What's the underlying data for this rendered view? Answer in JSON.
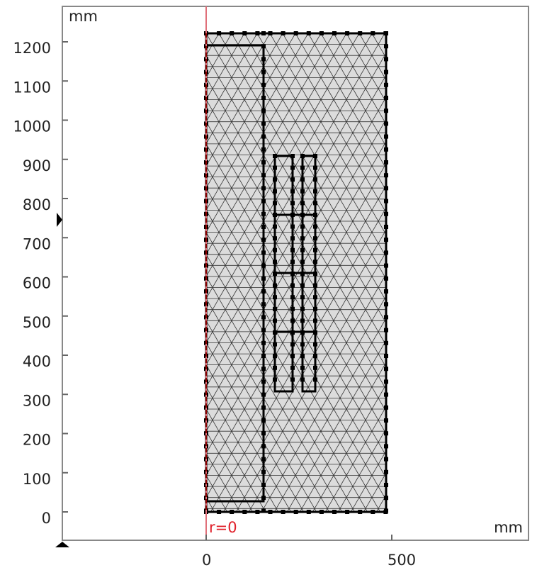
{
  "plot": {
    "x_unit": "mm",
    "y_unit": "mm",
    "axis_label": "r=0",
    "xticks": [
      0,
      500
    ],
    "yticks": [
      0,
      100,
      200,
      300,
      400,
      500,
      600,
      700,
      800,
      900,
      1000,
      1100,
      1200
    ]
  }
}
